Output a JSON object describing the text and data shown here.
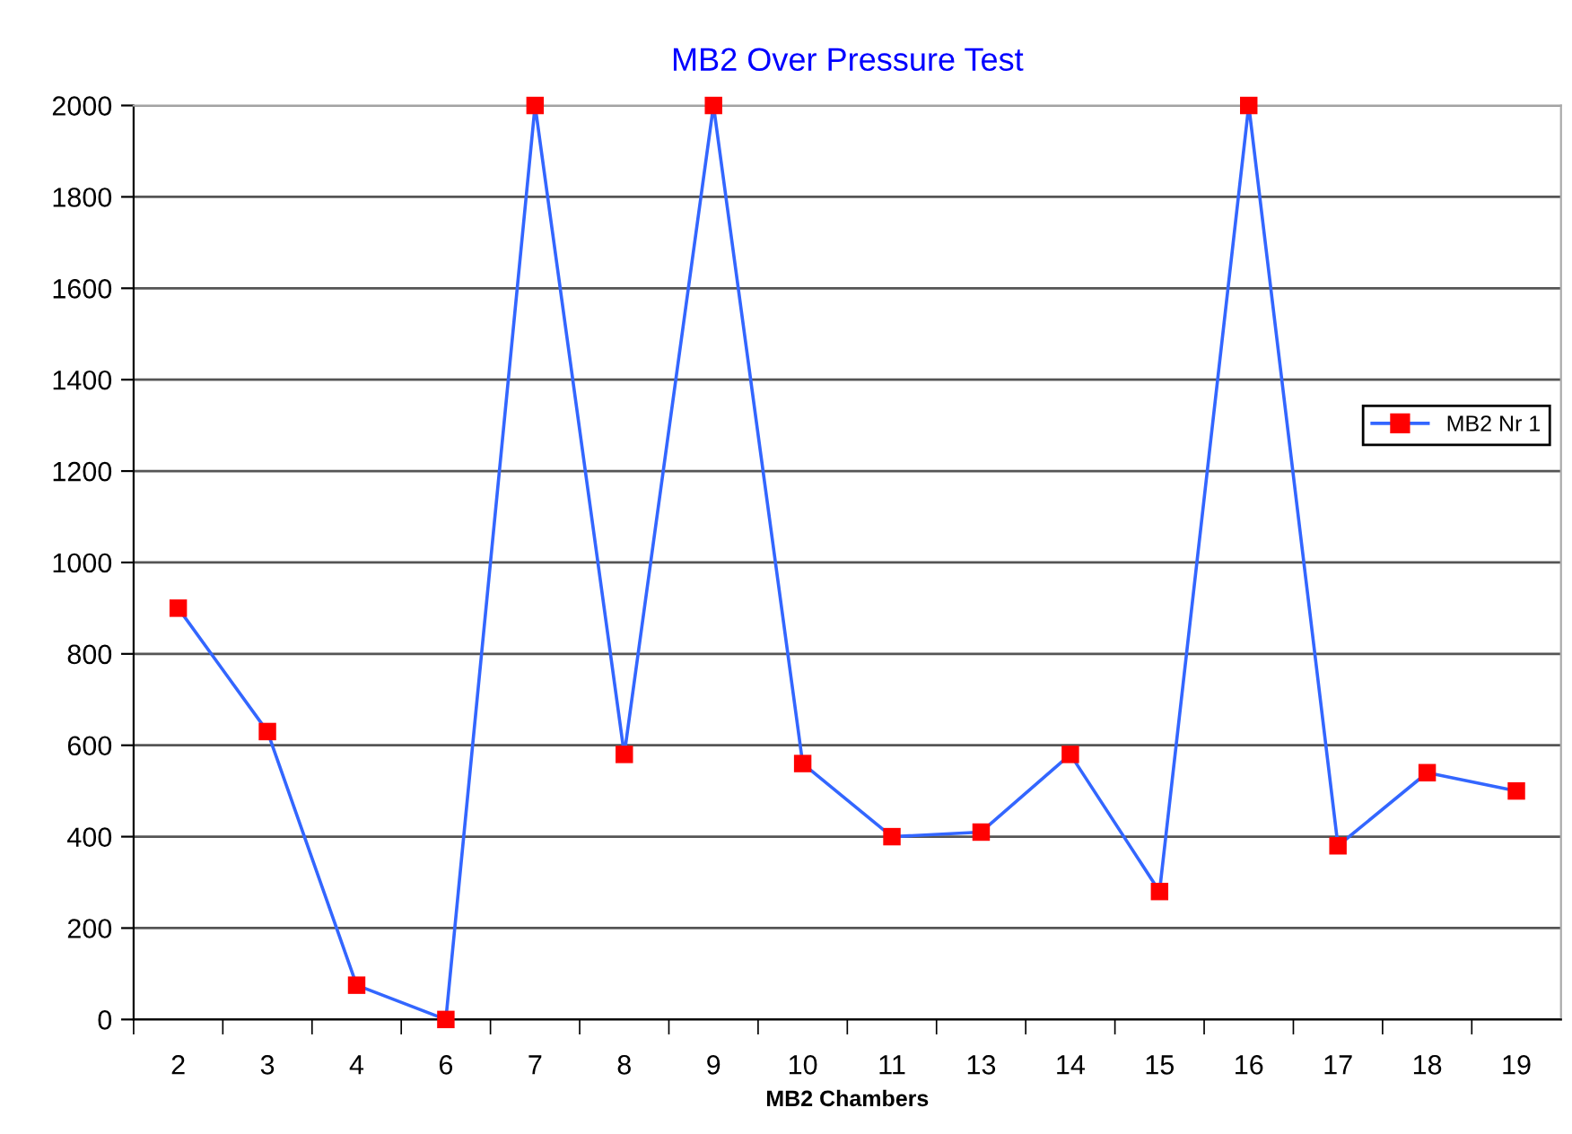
{
  "chart_data": {
    "type": "line",
    "title": "MB2 Over Pressure Test",
    "xlabel": "MB2 Chambers",
    "categories": [
      "2",
      "3",
      "4",
      "6",
      "7",
      "8",
      "9",
      "10",
      "11",
      "13",
      "14",
      "15",
      "16",
      "17",
      "18",
      "19"
    ],
    "series": [
      {
        "name": "MB2 Nr 1",
        "color": "#3366ff",
        "colors": [
          "#ff0000",
          "#ff0000",
          "#ff0000",
          "#ff0000",
          "#ff0000",
          "#ff0000",
          "#ff0000",
          "#ff0000",
          "#ff0000",
          "#ff0000",
          "#ff0000",
          "#ff0000",
          "#ff0000",
          "#ff0000",
          "#ff0000",
          "#ff0000"
        ],
        "values": [
          900,
          630,
          75,
          0,
          2000,
          580,
          2000,
          560,
          400,
          410,
          580,
          280,
          2000,
          380,
          540,
          500
        ]
      }
    ],
    "ylim": [
      0,
      2000
    ],
    "yticks": [
      0,
      200,
      400,
      600,
      800,
      1000,
      1200,
      1400,
      1600,
      1800,
      2000
    ],
    "grid": "y",
    "legend": "right",
    "marker": "square",
    "line_style": "solid"
  }
}
